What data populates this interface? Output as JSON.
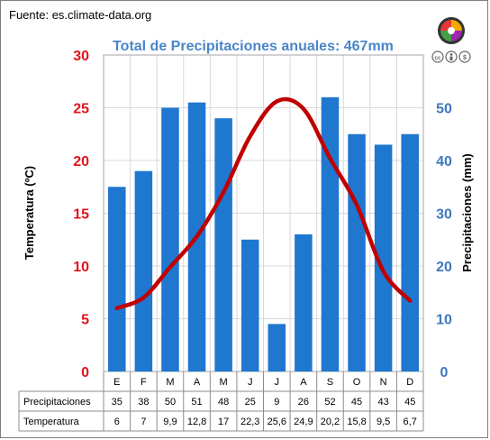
{
  "source_text": "Fuente: es.climate-data.org",
  "chart_data": {
    "type": "bar",
    "title": "Total de Precipitaciones anuales: 467mm",
    "categories": [
      "E",
      "F",
      "M",
      "A",
      "M",
      "J",
      "J",
      "A",
      "S",
      "O",
      "N",
      "D"
    ],
    "series": [
      {
        "name": "Precipitaciones",
        "type": "bar",
        "axis": "right",
        "values": [
          35,
          38,
          50,
          51,
          48,
          25,
          9,
          26,
          52,
          45,
          43,
          45
        ]
      },
      {
        "name": "Temperatura",
        "type": "line",
        "axis": "left",
        "values": [
          6,
          7,
          9.9,
          12.8,
          17,
          22.3,
          25.6,
          24.9,
          20.2,
          15.8,
          9.5,
          6.7
        ]
      }
    ],
    "ylabel_left": "Temperatura (ºC)",
    "ylabel_right": "Precipitaciones (mm)",
    "ylim_left": [
      0,
      30
    ],
    "ylim_right": [
      0,
      60
    ],
    "yticks_left": [
      "0",
      "5",
      "10",
      "15",
      "20",
      "25",
      "30"
    ],
    "yticks_right": [
      "0",
      "10",
      "20",
      "30",
      "40",
      "50"
    ],
    "grid": true,
    "table": {
      "rows": [
        {
          "label": "Precipitaciones",
          "cells": [
            "35",
            "38",
            "50",
            "51",
            "48",
            "25",
            "9",
            "26",
            "52",
            "45",
            "43",
            "45"
          ]
        },
        {
          "label": "Temperatura",
          "cells": [
            "6",
            "7",
            "9,9",
            "12,8",
            "17",
            "22,3",
            "25,6",
            "24,9",
            "20,2",
            "15,8",
            "9,5",
            "6,7"
          ]
        }
      ]
    }
  },
  "colors": {
    "bar": "#1f77d0",
    "line": "#c00000",
    "left_axis": "#e0141e",
    "right_axis": "#3f78bf",
    "title": "#4a86c8"
  },
  "icons": [
    "climate-data-logo-icon",
    "cc-license-icon",
    "by-license-icon",
    "nc-license-icon"
  ]
}
